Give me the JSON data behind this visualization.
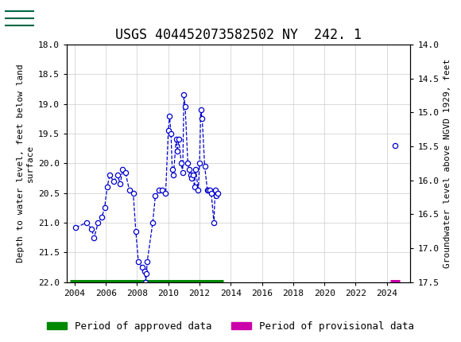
{
  "title": "USGS 404452073582502 NY  242. 1",
  "ylabel_left": "Depth to water level, feet below land\nsurface",
  "ylabel_right": "Groundwater level above NGVD 1929, feet",
  "ylim_left": [
    18.0,
    22.0
  ],
  "ylim_right": [
    17.5,
    14.0
  ],
  "xlim": [
    2003.5,
    2025.5
  ],
  "yticks_left": [
    18.0,
    18.5,
    19.0,
    19.5,
    20.0,
    20.5,
    21.0,
    21.5,
    22.0
  ],
  "yticks_right": [
    17.5,
    17.0,
    16.5,
    16.0,
    15.5,
    15.0,
    14.5,
    14.0
  ],
  "xticks": [
    2004,
    2006,
    2008,
    2010,
    2012,
    2014,
    2016,
    2018,
    2020,
    2022,
    2024
  ],
  "bg_header_color": "#006644",
  "line_color": "#0000CC",
  "approved_color": "#008800",
  "provisional_color": "#CC00AA",
  "approved_bar": {
    "x_start": 2003.7,
    "x_end": 2013.5,
    "y": 22.0
  },
  "provisional_bar": {
    "x_start": 2024.2,
    "x_end": 2024.85,
    "y": 22.0
  },
  "segments": [
    {
      "x": [
        2004.08,
        2004.75,
        2005.08,
        2005.25,
        2005.5,
        2005.75,
        2005.92,
        2006.08,
        2006.25,
        2006.5,
        2006.75,
        2006.92,
        2007.08,
        2007.25,
        2007.5,
        2007.75,
        2007.92,
        2008.08,
        2008.33,
        2008.5,
        2008.55,
        2008.6,
        2008.65,
        2009.0,
        2009.17,
        2009.42,
        2009.58,
        2009.83,
        2010.0,
        2010.08,
        2010.17,
        2010.25,
        2010.33,
        2010.5,
        2010.58,
        2010.67,
        2010.83,
        2010.92,
        2011.0,
        2011.08,
        2011.25,
        2011.33,
        2011.42,
        2011.5,
        2011.58,
        2011.67,
        2011.75,
        2011.92,
        2012.0,
        2012.08,
        2012.17,
        2012.33,
        2012.5,
        2012.58,
        2012.67,
        2012.75,
        2012.92,
        2013.0,
        2013.08,
        2013.17
      ],
      "y": [
        21.08,
        21.0,
        21.1,
        21.25,
        21.0,
        20.9,
        20.75,
        20.4,
        20.2,
        20.3,
        20.2,
        20.35,
        20.1,
        20.15,
        20.45,
        20.5,
        21.15,
        21.65,
        21.75,
        21.82,
        22.0,
        21.85,
        21.65,
        21.0,
        20.55,
        20.45,
        20.45,
        20.5,
        19.45,
        19.2,
        19.5,
        20.1,
        20.2,
        19.6,
        19.8,
        19.6,
        20.0,
        20.15,
        18.85,
        19.05,
        20.0,
        20.1,
        20.2,
        20.25,
        20.2,
        20.4,
        20.1,
        20.45,
        20.0,
        19.1,
        19.25,
        20.05,
        20.45,
        20.45,
        20.45,
        20.5,
        21.0,
        20.45,
        20.55,
        20.5
      ]
    }
  ],
  "isolated_points": {
    "x": [
      2024.5
    ],
    "y": [
      19.7
    ]
  },
  "header_text": "USGS",
  "title_fontsize": 12,
  "axis_fontsize": 8,
  "tick_fontsize": 8,
  "legend_fontsize": 9
}
